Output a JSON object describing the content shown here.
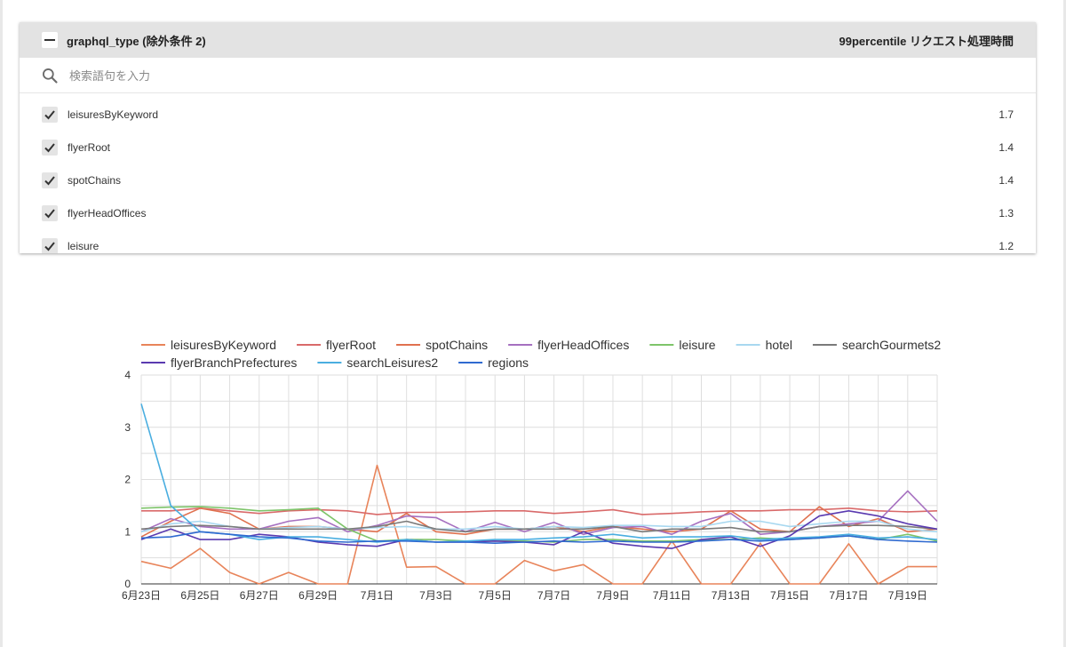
{
  "filter": {
    "title": "graphql_type (除外条件 2)",
    "metric_label": "99percentile リクエスト処理時間",
    "search_placeholder": "検索語句を入力",
    "items": [
      {
        "label": "leisuresByKeyword",
        "value": "1.7",
        "checked": true
      },
      {
        "label": "flyerRoot",
        "value": "1.4",
        "checked": true
      },
      {
        "label": "spotChains",
        "value": "1.4",
        "checked": true
      },
      {
        "label": "flyerHeadOffices",
        "value": "1.3",
        "checked": true
      },
      {
        "label": "leisure",
        "value": "1.2",
        "checked": true
      }
    ]
  },
  "chart_data": {
    "type": "line",
    "ylim": [
      0,
      4
    ],
    "yticks": [
      0,
      1,
      2,
      3,
      4
    ],
    "grid": true,
    "legend_position": "top",
    "x": [
      "6月23日",
      "6月24日",
      "6月25日",
      "6月26日",
      "6月27日",
      "6月28日",
      "6月29日",
      "6月30日",
      "7月1日",
      "7月2日",
      "7月3日",
      "7月4日",
      "7月5日",
      "7月6日",
      "7月7日",
      "7月8日",
      "7月9日",
      "7月10日",
      "7月11日",
      "7月12日",
      "7月13日",
      "7月14日",
      "7月15日",
      "7月16日",
      "7月17日",
      "7月18日",
      "7月19日",
      "7月20日"
    ],
    "xtick_labels": [
      "6月23日",
      "6月25日",
      "6月27日",
      "6月29日",
      "7月1日",
      "7月3日",
      "7月5日",
      "7月7日",
      "7月9日",
      "7月11日",
      "7月13日",
      "7月15日",
      "7月17日",
      "7月19日"
    ],
    "series": [
      {
        "name": "leisuresByKeyword",
        "color": "#e8845a",
        "values": [
          0.43,
          0.3,
          0.68,
          0.22,
          0.0,
          0.22,
          0.0,
          0.0,
          2.27,
          0.32,
          0.33,
          0.0,
          0.0,
          0.45,
          0.25,
          0.37,
          0.0,
          0.0,
          0.82,
          0.0,
          0.0,
          0.78,
          0.0,
          0.0,
          0.77,
          0.0,
          0.33,
          0.33
        ]
      },
      {
        "name": "flyerRoot",
        "color": "#d96a6a",
        "values": [
          1.4,
          1.4,
          1.45,
          1.4,
          1.35,
          1.4,
          1.42,
          1.4,
          1.33,
          1.37,
          1.37,
          1.38,
          1.4,
          1.4,
          1.35,
          1.38,
          1.42,
          1.33,
          1.35,
          1.38,
          1.4,
          1.4,
          1.42,
          1.42,
          1.45,
          1.4,
          1.38,
          1.4
        ]
      },
      {
        "name": "spotChains",
        "color": "#e0714f",
        "values": [
          0.9,
          1.2,
          1.45,
          1.35,
          1.05,
          1.1,
          1.1,
          1.05,
          1.0,
          1.35,
          1.0,
          0.95,
          1.05,
          1.05,
          1.1,
          1.0,
          1.1,
          1.05,
          1.0,
          1.05,
          1.4,
          1.05,
          1.0,
          1.48,
          1.1,
          1.25,
          1.0,
          1.05
        ]
      },
      {
        "name": "flyerHeadOffices",
        "color": "#a670c0",
        "values": [
          1.0,
          1.25,
          1.1,
          1.05,
          1.05,
          1.2,
          1.27,
          1.0,
          1.12,
          1.3,
          1.27,
          1.0,
          1.18,
          1.0,
          1.18,
          0.95,
          1.08,
          1.1,
          0.95,
          1.2,
          1.35,
          0.95,
          1.0,
          1.1,
          1.15,
          1.2,
          1.78,
          1.2
        ]
      },
      {
        "name": "leisure",
        "color": "#7ec46a",
        "values": [
          1.45,
          1.47,
          1.48,
          1.45,
          1.4,
          1.42,
          1.45,
          1.05,
          0.82,
          0.85,
          0.85,
          0.82,
          0.82,
          0.82,
          0.8,
          0.85,
          0.85,
          0.82,
          0.82,
          0.85,
          0.85,
          0.88,
          0.85,
          0.88,
          0.92,
          0.85,
          0.95,
          0.82
        ]
      },
      {
        "name": "hotel",
        "color": "#a8d8f0",
        "values": [
          1.0,
          1.15,
          1.2,
          1.1,
          1.05,
          1.08,
          1.1,
          1.05,
          1.08,
          1.1,
          1.05,
          1.05,
          1.1,
          1.05,
          1.1,
          1.08,
          1.12,
          1.12,
          1.1,
          1.1,
          1.2,
          1.2,
          1.1,
          1.15,
          1.2,
          1.2,
          1.05,
          1.0
        ]
      },
      {
        "name": "searchGourmets2",
        "color": "#7a7a7a",
        "values": [
          1.05,
          1.1,
          1.12,
          1.1,
          1.05,
          1.05,
          1.05,
          1.05,
          1.1,
          1.2,
          1.05,
          1.0,
          1.05,
          1.05,
          1.05,
          1.05,
          1.1,
          1.0,
          1.05,
          1.05,
          1.08,
          1.0,
          1.0,
          1.1,
          1.12,
          1.12,
          1.1,
          1.05
        ]
      },
      {
        "name": "flyerBranchPrefectures",
        "color": "#5a3ab0",
        "values": [
          0.85,
          1.05,
          0.85,
          0.85,
          0.95,
          0.9,
          0.8,
          0.75,
          0.72,
          0.85,
          0.8,
          0.8,
          0.82,
          0.8,
          0.75,
          1.0,
          0.78,
          0.72,
          0.68,
          0.85,
          0.9,
          0.72,
          0.92,
          1.3,
          1.4,
          1.3,
          1.15,
          1.05
        ]
      },
      {
        "name": "searchLeisures2",
        "color": "#4aaee0",
        "values": [
          3.45,
          1.5,
          1.0,
          0.95,
          0.85,
          0.9,
          0.9,
          0.85,
          0.8,
          0.85,
          0.8,
          0.82,
          0.85,
          0.85,
          0.88,
          0.9,
          0.95,
          0.88,
          0.9,
          0.9,
          0.92,
          0.85,
          0.88,
          0.9,
          0.95,
          0.88,
          0.9,
          0.85
        ]
      },
      {
        "name": "regions",
        "color": "#2f6ad0",
        "values": [
          0.88,
          0.9,
          1.0,
          0.95,
          0.9,
          0.88,
          0.82,
          0.8,
          0.82,
          0.82,
          0.8,
          0.8,
          0.78,
          0.8,
          0.82,
          0.8,
          0.82,
          0.8,
          0.8,
          0.82,
          0.85,
          0.82,
          0.85,
          0.88,
          0.92,
          0.85,
          0.82,
          0.8
        ]
      }
    ]
  }
}
